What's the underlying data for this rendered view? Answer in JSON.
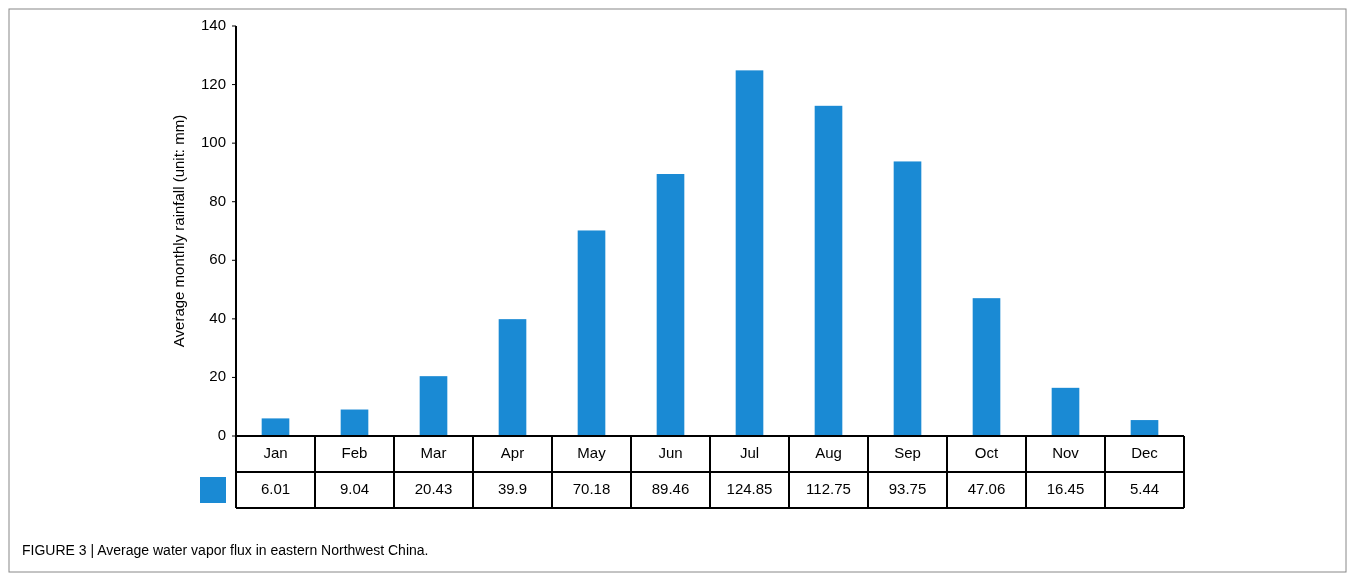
{
  "chart_data": {
    "type": "bar",
    "ylabel": "Average monthly rainfall (unit: mm)",
    "categories": [
      "Jan",
      "Feb",
      "Mar",
      "Apr",
      "May",
      "Jun",
      "Jul",
      "Aug",
      "Sep",
      "Oct",
      "Nov",
      "Dec"
    ],
    "values": [
      6.01,
      9.04,
      20.43,
      39.9,
      70.18,
      89.46,
      124.85,
      112.75,
      93.75,
      47.06,
      16.45,
      5.44
    ],
    "color": "#1a8ad4",
    "ylim": [
      0,
      140
    ],
    "yticks": [
      0,
      20,
      40,
      60,
      80,
      100,
      120,
      140
    ],
    "data_labels": true,
    "annotations": [
      "FIGURE 3 | Average water vapor flux in eastern Northwest China."
    ]
  }
}
